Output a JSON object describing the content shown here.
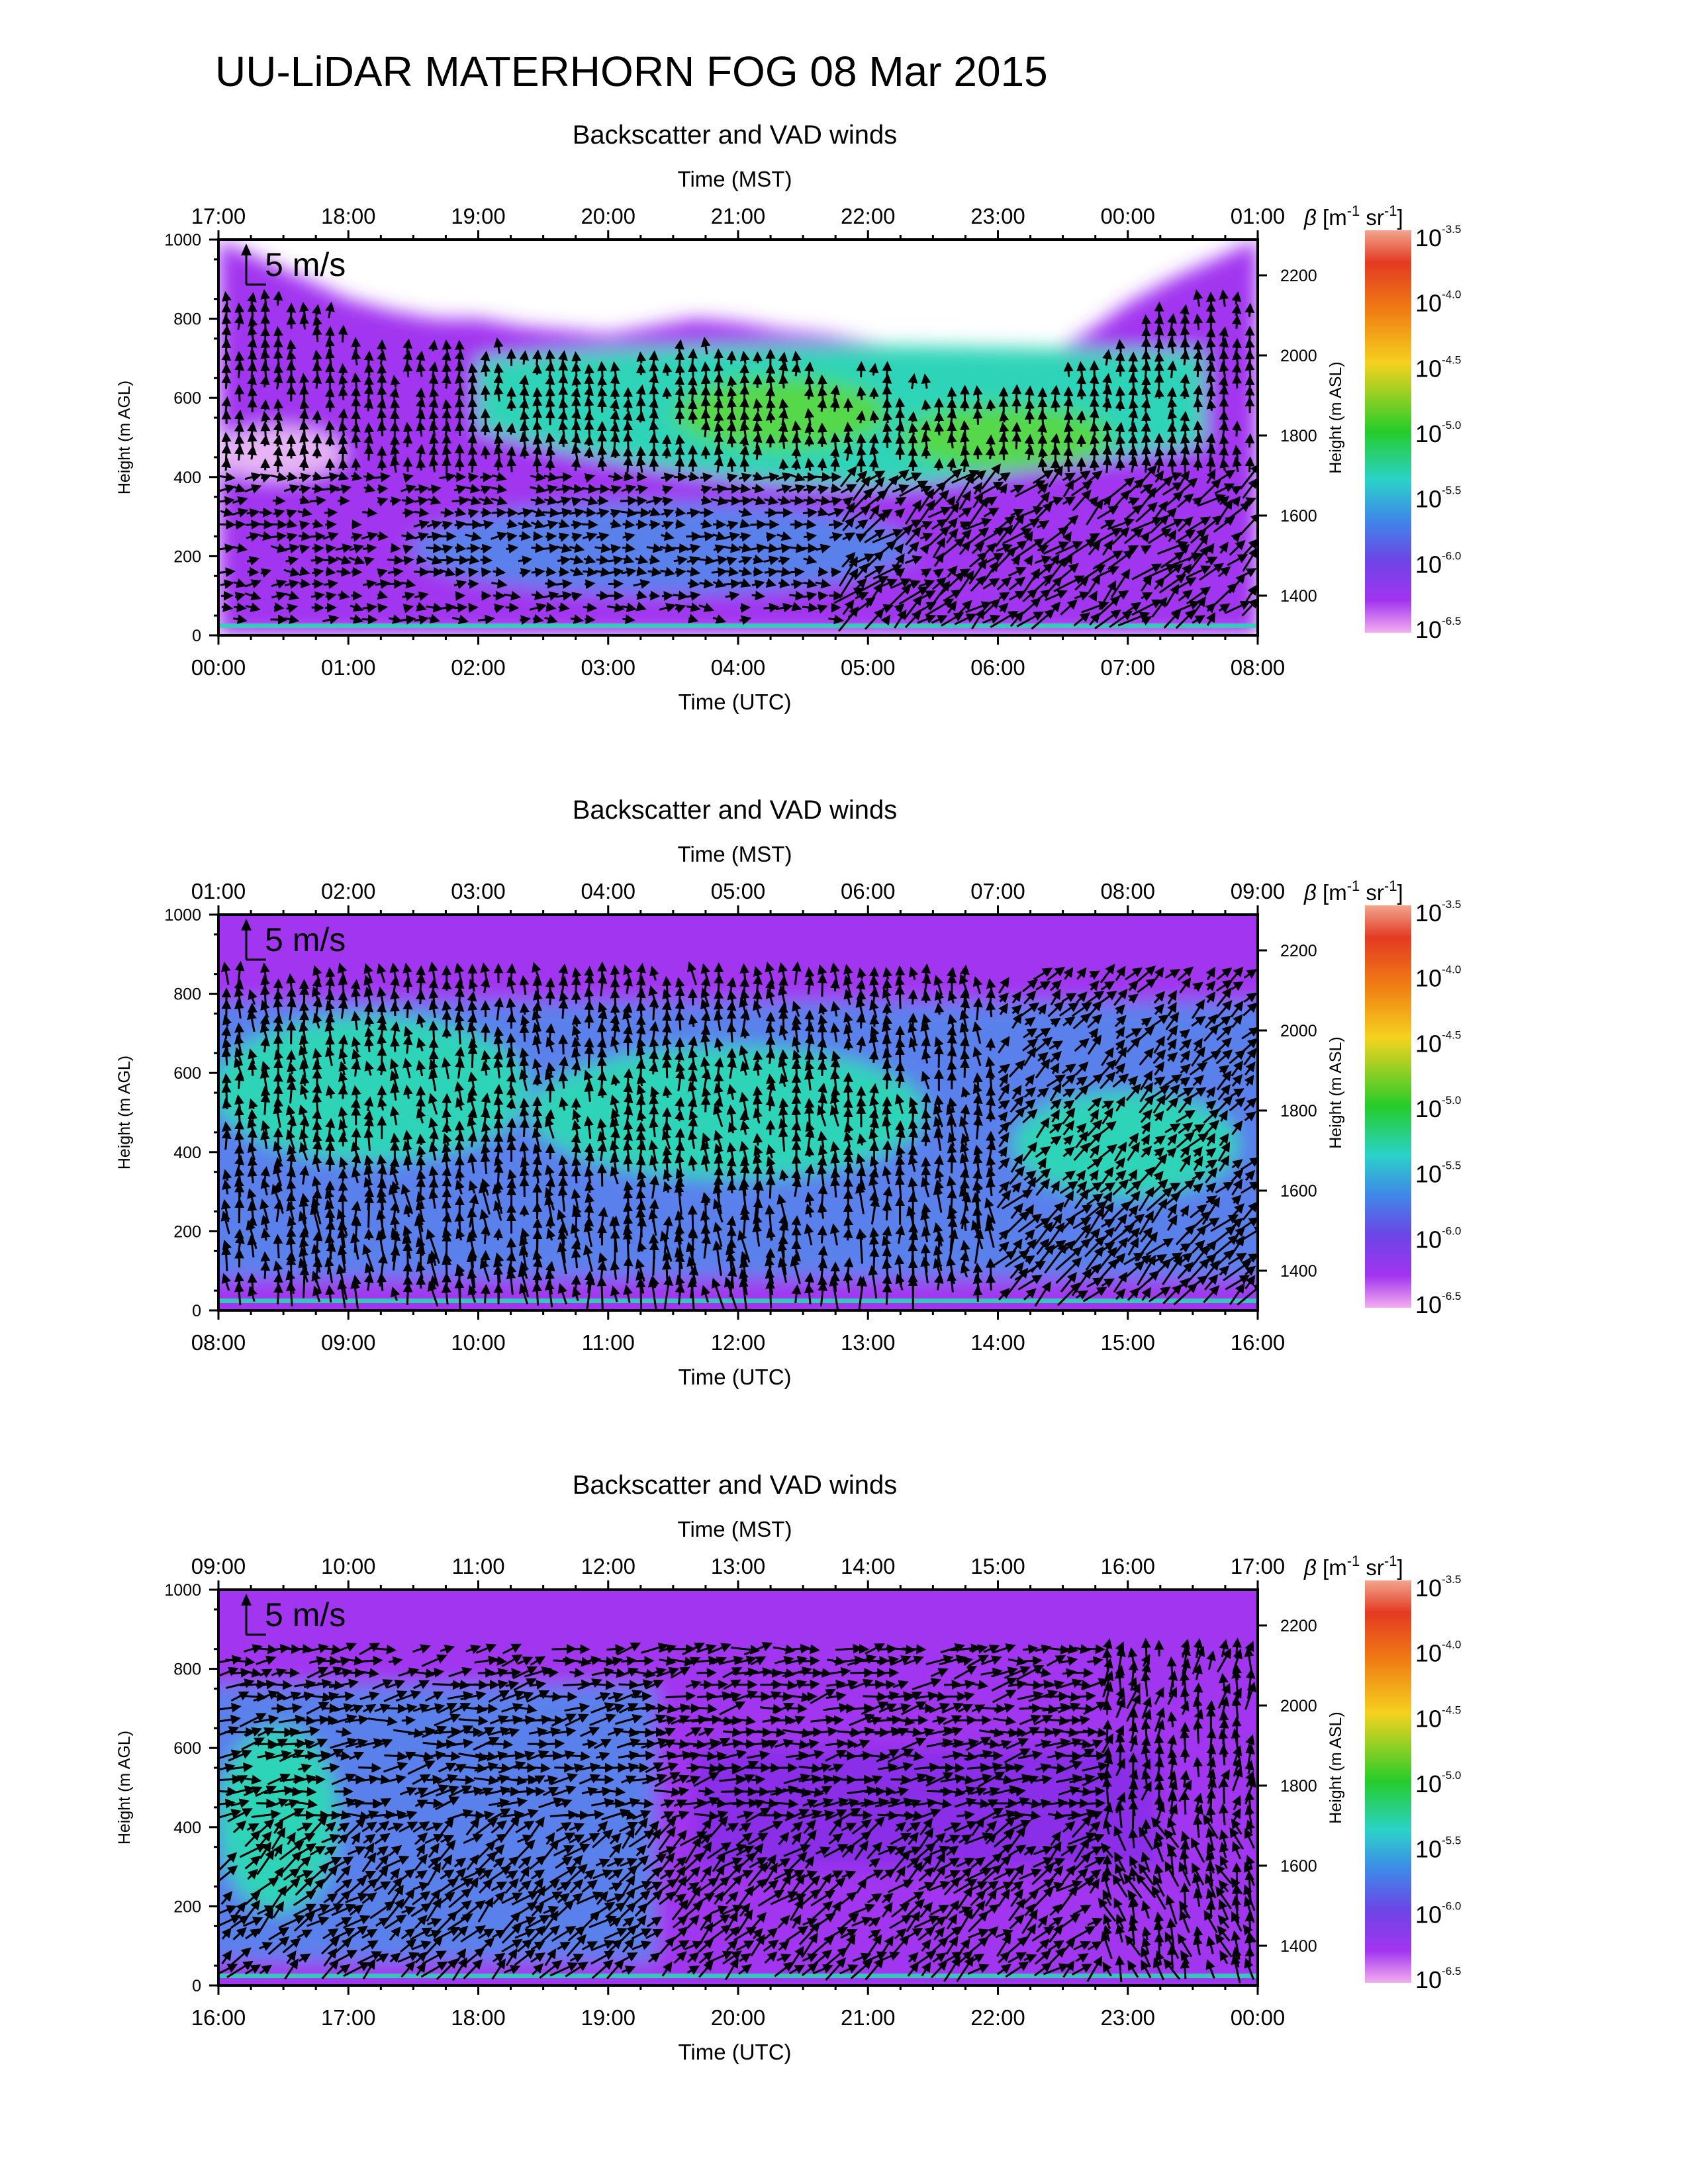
{
  "page_title": "UU-LiDAR MATERHORN FOG  08 Mar 2015",
  "scale_arrow_label": "5 m/s",
  "colorbar_ticks": [
    {
      "base": "10",
      "exp": "-3.5"
    },
    {
      "base": "10",
      "exp": "-4.0"
    },
    {
      "base": "10",
      "exp": "-4.5"
    },
    {
      "base": "10",
      "exp": "-5.0"
    },
    {
      "base": "10",
      "exp": "-5.5"
    },
    {
      "base": "10",
      "exp": "-6.0"
    },
    {
      "base": "10",
      "exp": "-6.5"
    }
  ],
  "colorbar_colors": [
    "#f2a58e",
    "#e43a22",
    "#f07d14",
    "#f5d21e",
    "#25cc2a",
    "#2ad2c8",
    "#3f88e8",
    "#6c45e6",
    "#a234f0",
    "#f3aef0"
  ],
  "colors": {
    "clear_air": "#ffffff",
    "low_backscatter": "#a234f0",
    "mid_backscatter": "#5a80ec",
    "high_backscatter": "#2dd4b8",
    "peak_backscatter": "#55d84a",
    "wind_vector": "#000000"
  },
  "chart_data": [
    {
      "type": "heatmap",
      "title": "Backscatter and VAD winds",
      "xlabel": "Time (UTC)",
      "xlabel_top": "Time (MST)",
      "ylabel": "Height (m AGL)",
      "ylabel_right": "Height (m ASL)",
      "colorbar_label": "β [m-1 sr-1]",
      "colorbar_label_parts": {
        "beta": "β",
        "open": " [m",
        "exp1": "-1",
        "mid": " sr",
        "exp2": "-1",
        "close": "]"
      },
      "x_ticks_utc": [
        "00:00",
        "01:00",
        "02:00",
        "03:00",
        "04:00",
        "05:00",
        "06:00",
        "07:00",
        "08:00"
      ],
      "x_ticks_mst": [
        "17:00",
        "18:00",
        "19:00",
        "20:00",
        "21:00",
        "22:00",
        "23:00",
        "00:00",
        "01:00"
      ],
      "ylim": [
        0,
        1000
      ],
      "y_ticks": [
        "0",
        "200",
        "400",
        "600",
        "800",
        "1000"
      ],
      "y_ticks_right": [
        "1400",
        "1600",
        "1800",
        "2000",
        "2200"
      ],
      "colorbar_range_log10": [
        -6.5,
        -3.5
      ],
      "layer_top_m": [
        1000,
        950,
        900,
        850,
        820,
        800,
        800,
        780,
        770,
        760,
        780,
        800,
        790,
        770,
        760,
        740,
        720,
        700,
        690,
        700,
        760,
        840,
        900,
        950,
        1000
      ],
      "peak_layer": {
        "center_m": 560,
        "max_log10": -5.1,
        "time_range_utc": [
          "03:30",
          "07:30"
        ]
      },
      "wind_vectors_shown": true,
      "scale_vector_m_s": 5
    },
    {
      "type": "heatmap",
      "title": "Backscatter and VAD winds",
      "xlabel": "Time (UTC)",
      "xlabel_top": "Time (MST)",
      "ylabel": "Height (m AGL)",
      "ylabel_right": "Height (m ASL)",
      "colorbar_label": "β [m-1 sr-1]",
      "colorbar_label_parts": {
        "beta": "β",
        "open": " [m",
        "exp1": "-1",
        "mid": " sr",
        "exp2": "-1",
        "close": "]"
      },
      "x_ticks_utc": [
        "08:00",
        "09:00",
        "10:00",
        "11:00",
        "12:00",
        "13:00",
        "14:00",
        "15:00",
        "16:00"
      ],
      "x_ticks_mst": [
        "01:00",
        "02:00",
        "03:00",
        "04:00",
        "05:00",
        "06:00",
        "07:00",
        "08:00",
        "09:00"
      ],
      "ylim": [
        0,
        1000
      ],
      "y_ticks": [
        "0",
        "200",
        "400",
        "600",
        "800",
        "1000"
      ],
      "y_ticks_right": [
        "1400",
        "1600",
        "1800",
        "2000",
        "2200"
      ],
      "colorbar_range_log10": [
        -6.5,
        -3.5
      ],
      "peak_layer": {
        "center_m": 560,
        "max_log10": -5.6,
        "time_range_utc": [
          "08:00",
          "16:00"
        ]
      },
      "wind_vectors_shown": true,
      "scale_vector_m_s": 5
    },
    {
      "type": "heatmap",
      "title": "Backscatter and VAD winds",
      "xlabel": "Time (UTC)",
      "xlabel_top": "Time (MST)",
      "ylabel": "Height (m AGL)",
      "ylabel_right": "Height (m ASL)",
      "colorbar_label": "β [m-1 sr-1]",
      "colorbar_label_parts": {
        "beta": "β",
        "open": " [m",
        "exp1": "-1",
        "mid": " sr",
        "exp2": "-1",
        "close": "]"
      },
      "x_ticks_utc": [
        "16:00",
        "17:00",
        "18:00",
        "19:00",
        "20:00",
        "21:00",
        "22:00",
        "23:00",
        "00:00"
      ],
      "x_ticks_mst": [
        "09:00",
        "10:00",
        "11:00",
        "12:00",
        "13:00",
        "14:00",
        "15:00",
        "16:00",
        "17:00"
      ],
      "ylim": [
        0,
        1000
      ],
      "y_ticks": [
        "0",
        "200",
        "400",
        "600",
        "800",
        "1000"
      ],
      "y_ticks_right": [
        "1400",
        "1600",
        "1800",
        "2000",
        "2200"
      ],
      "colorbar_range_log10": [
        -6.5,
        -3.5
      ],
      "peak_layer": {
        "center_m": 420,
        "max_log10": -5.5,
        "time_range_utc": [
          "16:00",
          "17:00"
        ]
      },
      "wind_vectors_shown": true,
      "scale_vector_m_s": 5
    }
  ]
}
